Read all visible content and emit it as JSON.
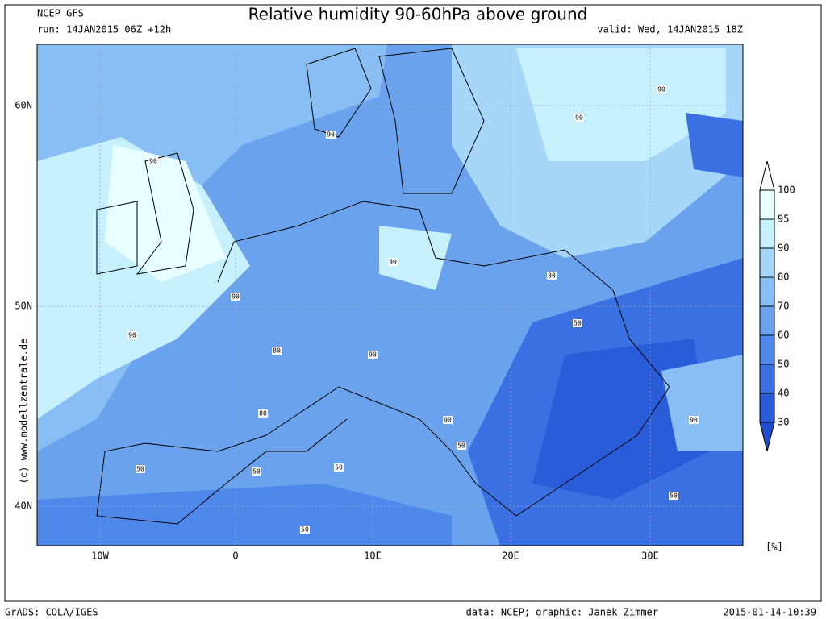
{
  "header": {
    "model": "NCEP GFS",
    "run": "run: 14JAN2015 06Z +12h",
    "title": "Relative humidity 90-60hPa above ground",
    "valid": "valid: Wed, 14JAN2015 18Z"
  },
  "axes": {
    "lat_labels": [
      "60N",
      "50N",
      "40N"
    ],
    "lon_labels": [
      "10W",
      "0",
      "10E",
      "20E",
      "30E"
    ]
  },
  "colorbar": {
    "levels": [
      100,
      95,
      90,
      80,
      70,
      60,
      50,
      40,
      30
    ],
    "colors": [
      "#ffffff",
      "#e8ffff",
      "#c6f0fc",
      "#a6d6f8",
      "#88bef4",
      "#6aa2ee",
      "#4e88ea",
      "#3a70e2",
      "#2a5cda",
      "#1e4ccc"
    ],
    "unit": "[%]"
  },
  "contour_labels": [
    "90",
    "90",
    "90",
    "90",
    "90",
    "90",
    "90",
    "90",
    "90",
    "80",
    "80",
    "80",
    "50",
    "50",
    "50",
    "50",
    "50",
    "50",
    "50",
    "90"
  ],
  "side_credit": "(c) www.modellzentrale.de",
  "footer": {
    "software": "GrADS: COLA/IGES",
    "credits": "data: NCEP; graphic: Janek Zimmer",
    "timestamp": "2015-01-14-10:39"
  }
}
